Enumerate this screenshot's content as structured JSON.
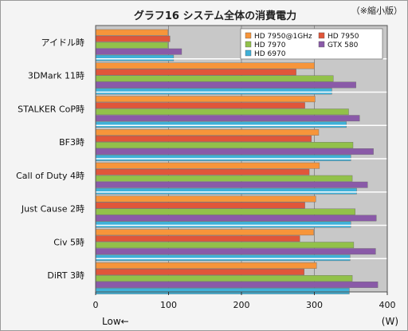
{
  "chart_data": {
    "type": "bar",
    "orientation": "horizontal",
    "title": "グラフ16 システム全体の消費電力",
    "note": "（※縮小版）",
    "unit": "(W)",
    "low_label": "Low←",
    "xlim": [
      0,
      400
    ],
    "xticks": [
      0,
      100,
      200,
      300,
      400
    ],
    "grid": true,
    "legend_position": "top-right",
    "categories": [
      "アイドル時",
      "3DMark 11時",
      "STALKER CoP時",
      "BF3時",
      "Call of Duty 4時",
      "Just Cause 2時",
      "Civ 5時",
      "DiRT 3時"
    ],
    "series": [
      {
        "name": "HD 7950@1GHz",
        "color": "#f7953a",
        "values": [
          99,
          300,
          301,
          306,
          307,
          302,
          299,
          303
        ]
      },
      {
        "name": "HD 7950",
        "color": "#e0563a",
        "values": [
          102,
          275,
          287,
          296,
          293,
          287,
          280,
          286
        ]
      },
      {
        "name": "HD 7970",
        "color": "#92c14a",
        "values": [
          99,
          326,
          347,
          353,
          352,
          356,
          354,
          352
        ]
      },
      {
        "name": "GTX 580",
        "color": "#8a5aa8",
        "values": [
          118,
          357,
          362,
          381,
          373,
          385,
          384,
          387
        ]
      },
      {
        "name": "HD 6970",
        "color": "#3fb1d8",
        "values": [
          107,
          324,
          344,
          350,
          358,
          350,
          349,
          348
        ]
      }
    ]
  }
}
